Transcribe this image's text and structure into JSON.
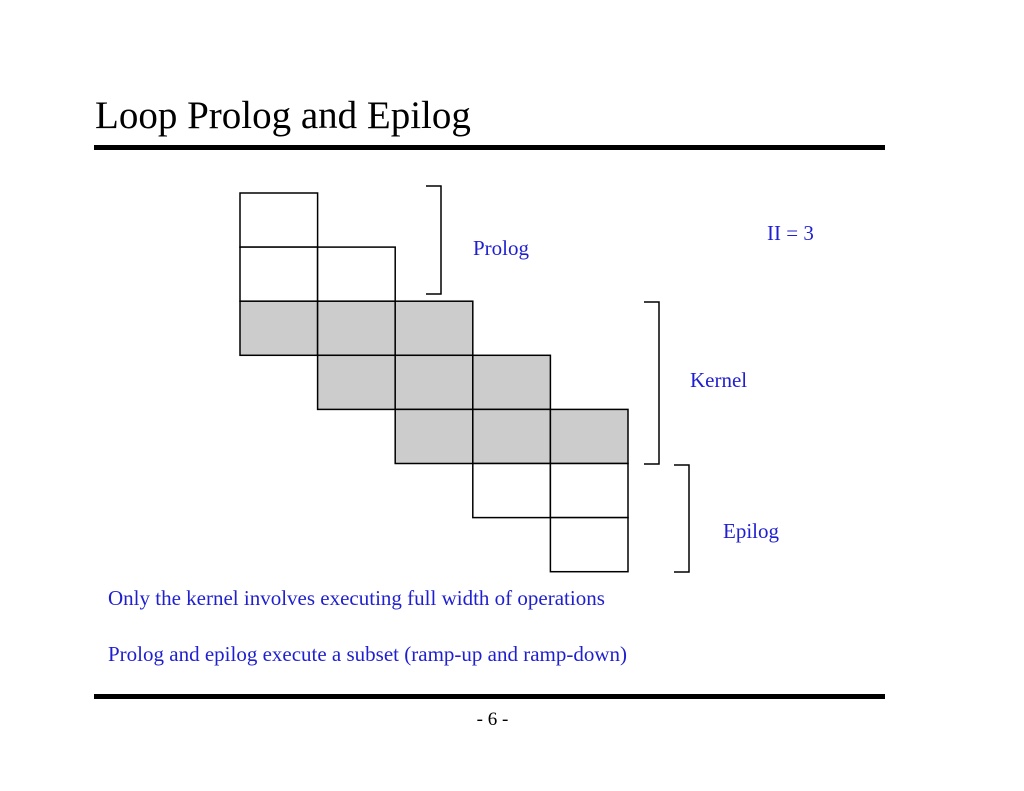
{
  "slide": {
    "title": "Loop Prolog and Epilog",
    "page_number": "- 6 -"
  },
  "diagram": {
    "labels": {
      "prolog": "Prolog",
      "kernel": "Kernel",
      "epilog": "Epilog",
      "ii": "II = 3"
    },
    "rows": [
      {
        "start_col": 0,
        "count": 1,
        "phase": "prolog"
      },
      {
        "start_col": 0,
        "count": 2,
        "phase": "prolog"
      },
      {
        "start_col": 0,
        "count": 3,
        "phase": "kernel"
      },
      {
        "start_col": 1,
        "count": 3,
        "phase": "kernel"
      },
      {
        "start_col": 2,
        "count": 3,
        "phase": "kernel"
      },
      {
        "start_col": 3,
        "count": 2,
        "phase": "epilog"
      },
      {
        "start_col": 4,
        "count": 1,
        "phase": "epilog"
      }
    ],
    "colors": {
      "kernel_fill": "#cccccc",
      "other_fill": "#ffffff",
      "stroke": "#000000",
      "label_color": "#1f1fd0"
    }
  },
  "notes": [
    "Only the kernel involves executing full width of operations",
    "Prolog and epilog execute a subset (ramp-up and ramp-down)"
  ]
}
